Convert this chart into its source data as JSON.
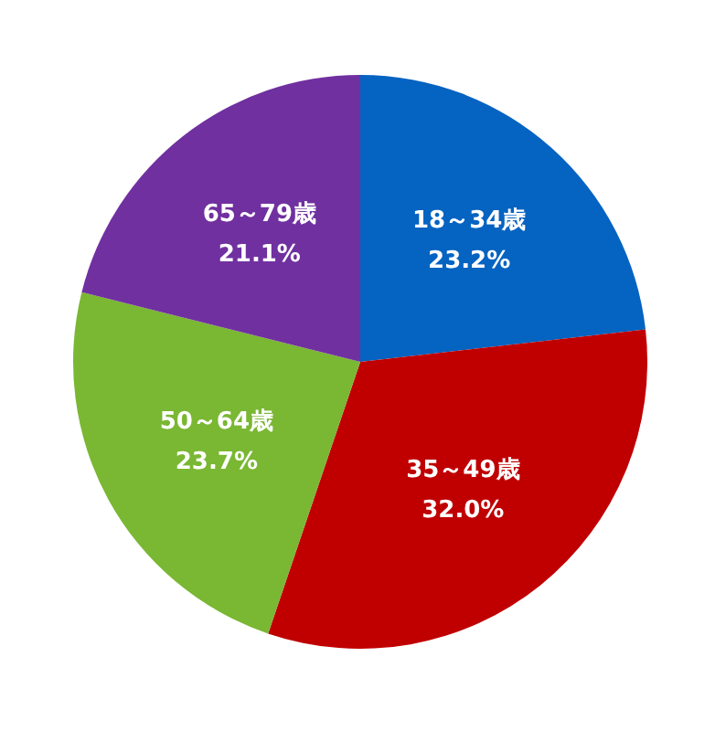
{
  "chart_data": {
    "type": "pie",
    "categories": [
      "18～34歳",
      "35～49歳",
      "50～64歳",
      "65～79歳"
    ],
    "values": [
      23.2,
      32.0,
      23.7,
      21.1
    ],
    "colors": [
      "#0563c1",
      "#c00000",
      "#7ab733",
      "#7030a0"
    ],
    "value_labels": [
      "23.2%",
      "32.0%",
      "23.7%",
      "21.1%"
    ],
    "legend": false
  }
}
